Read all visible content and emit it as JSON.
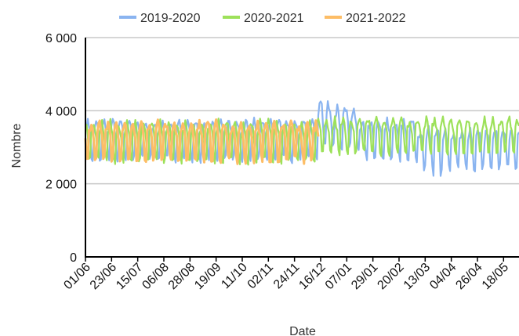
{
  "chart_data": {
    "type": "line",
    "xlabel": "Date",
    "ylabel": "Nombre",
    "ylim": [
      0,
      6000
    ],
    "yticks": [
      {
        "value": 0,
        "label": "0"
      },
      {
        "value": 2000,
        "label": "2 000"
      },
      {
        "value": 4000,
        "label": "4 000"
      },
      {
        "value": 6000,
        "label": "6 000"
      }
    ],
    "x_tick_labels": [
      "01/06",
      "23/06",
      "15/07",
      "06/08",
      "28/08",
      "19/09",
      "11/10",
      "02/11",
      "24/11",
      "16/12",
      "07/01",
      "29/01",
      "20/02",
      "13/03",
      "04/04",
      "26/04",
      "18/05"
    ],
    "x_tick_spacing_days": 22,
    "x_days_total": 365,
    "grid": true,
    "legend_position": "top",
    "series": [
      {
        "name": "2019-2020",
        "color": "#8ab4f0",
        "day_range": [
          0,
          365
        ],
        "level": 3200,
        "amplitude": 520,
        "segments": [
          {
            "from_day": 196,
            "to_day": 230,
            "level": 3550,
            "amplitude": 520,
            "peak": 4280
          },
          {
            "from_day": 280,
            "to_day": 365,
            "level": 2950,
            "amplitude": 520,
            "low": 2200
          }
        ]
      },
      {
        "name": "2020-2021",
        "color": "#9de15a",
        "day_range": [
          0,
          365
        ],
        "level": 3150,
        "amplitude": 520,
        "segments": [
          {
            "from_day": 196,
            "to_day": 365,
            "level": 3300,
            "amplitude": 450
          }
        ]
      },
      {
        "name": "2021-2022",
        "color": "#fdbd66",
        "day_range": [
          0,
          196
        ],
        "level": 3150,
        "amplitude": 500,
        "segments": []
      }
    ]
  }
}
